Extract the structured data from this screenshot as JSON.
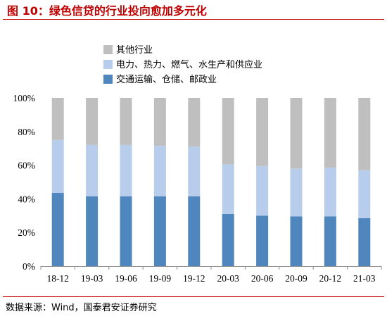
{
  "title": "图 10：绿色信贷的行业投向愈加多元化",
  "source": "数据来源：Wind，国泰君安证券研究",
  "colors": {
    "title": "#c00000",
    "series": [
      "#4f86bd",
      "#b7cdeb",
      "#bfbfbf"
    ]
  },
  "chart_data": {
    "type": "bar",
    "stacked": true,
    "categories": [
      "18-12",
      "19-03",
      "19-06",
      "19-09",
      "19-12",
      "20-03",
      "20-06",
      "20-09",
      "20-12",
      "21-03"
    ],
    "series": [
      {
        "name": "交通运输、仓储、邮政业",
        "values": [
          43.5,
          41.5,
          41.5,
          41.5,
          41.5,
          31,
          30,
          29.5,
          29.5,
          28.5
        ]
      },
      {
        "name": "电力、热力、燃气、水生产和供应业",
        "values": [
          31.5,
          30.5,
          30.5,
          30,
          29.5,
          29.5,
          29.5,
          28.5,
          29,
          28.5
        ]
      },
      {
        "name": "其他行业",
        "values": [
          25,
          28,
          28,
          28.5,
          29,
          39.5,
          40.5,
          42,
          41.5,
          43
        ]
      }
    ],
    "legend_order": [
      "其他行业",
      "电力、热力、燃气、水生产和供应业",
      "交通运输、仓储、邮政业"
    ],
    "ylim": [
      0,
      100
    ],
    "yticks": [
      "0%",
      "20%",
      "40%",
      "60%",
      "80%",
      "100%"
    ],
    "legend_position": "top-left",
    "grid": false
  }
}
